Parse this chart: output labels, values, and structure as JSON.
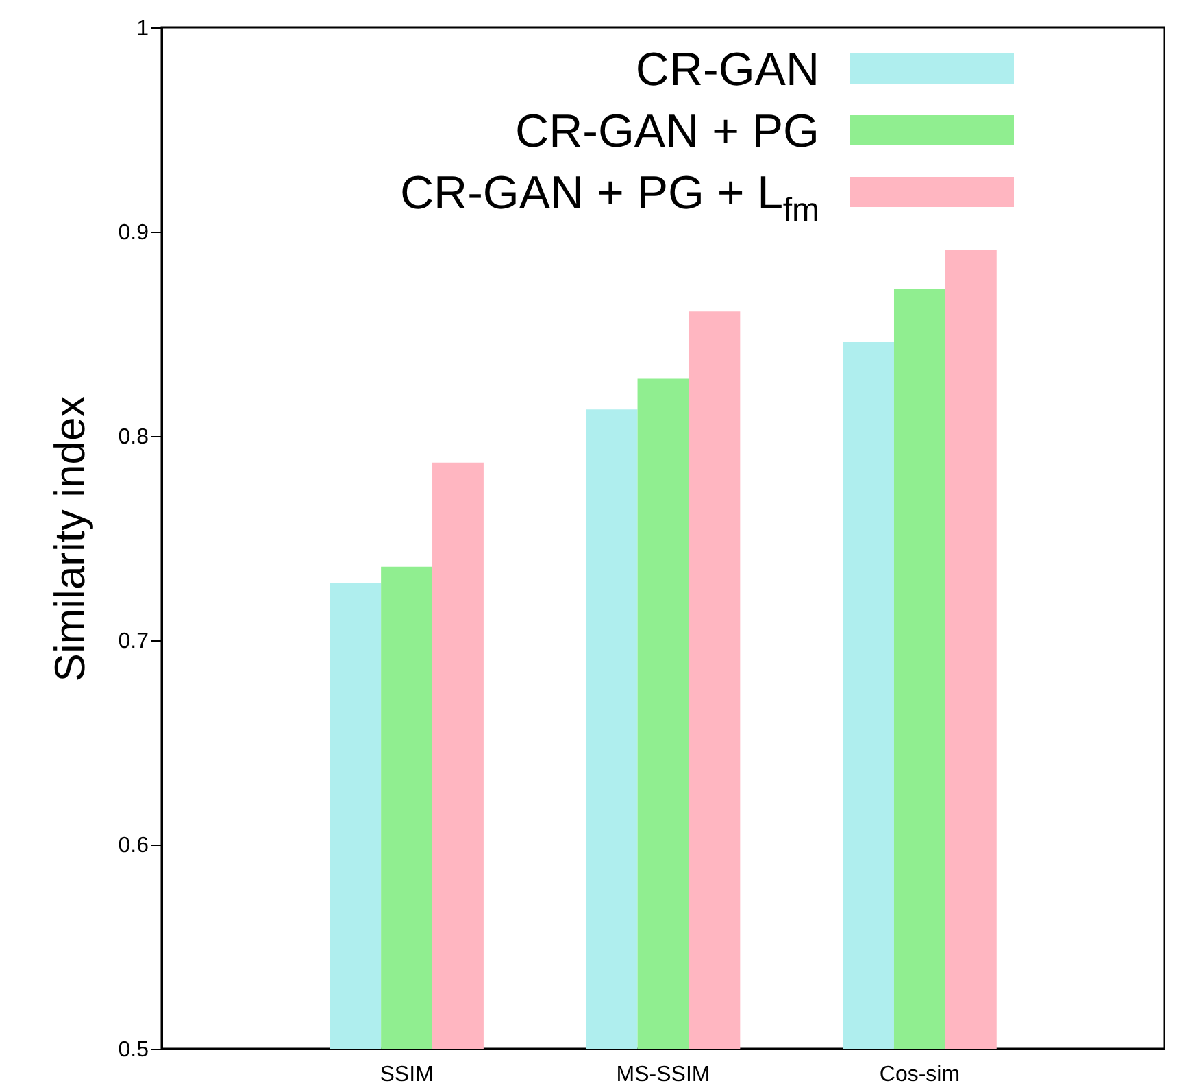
{
  "chart_data": {
    "type": "bar",
    "ylabel": "Similarity index",
    "categories": [
      "SSIM",
      "MS-SSIM",
      "Cos-sim"
    ],
    "series": [
      {
        "name": "CR-GAN",
        "color": "#afeeee",
        "values": [
          0.728,
          0.813,
          0.846
        ]
      },
      {
        "name": "CR-GAN + PG",
        "color": "#90ee90",
        "values": [
          0.736,
          0.828,
          0.872
        ]
      },
      {
        "name": "CR-GAN + PG + L$_{fm}$",
        "color": "#ffb6c1",
        "values": [
          0.787,
          0.861,
          0.891
        ]
      }
    ],
    "ylim": [
      0.5,
      1
    ],
    "yticks": [
      0.5,
      0.6,
      0.7,
      0.8,
      0.9,
      1
    ],
    "grid": false,
    "legend": "top right"
  }
}
